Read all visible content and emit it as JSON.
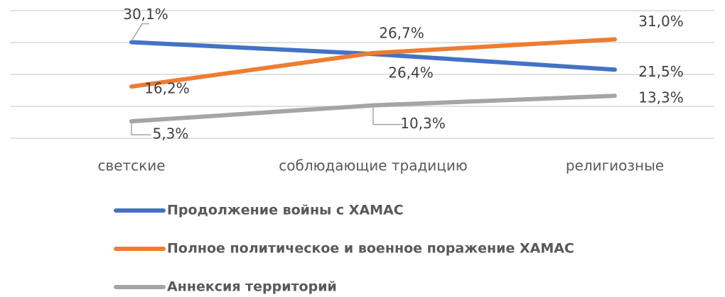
{
  "chart_data": {
    "type": "line",
    "categories": [
      "светские",
      "соблюдающие традицию",
      "религиозные"
    ],
    "series": [
      {
        "name": "Продолжение войны с ХАМАС",
        "color": "#4472c4",
        "values": [
          30.1,
          26.4,
          21.5
        ],
        "value_labels": [
          "30,1%",
          "26,4%",
          "21,5%"
        ]
      },
      {
        "name": "Полное политическое и военное поражение ХАМАС",
        "color": "#ed7d31",
        "values": [
          16.2,
          26.7,
          31.0
        ],
        "value_labels": [
          "16,2%",
          "26,7%",
          "31,0%"
        ]
      },
      {
        "name": "Аннексия территорий",
        "color": "#a5a5a5",
        "values": [
          5.3,
          10.3,
          13.3
        ],
        "value_labels": [
          "5,3%",
          "10,3%",
          "13,3%"
        ]
      }
    ],
    "ylim": [
      0,
      40
    ],
    "yticks": [
      0,
      10,
      20,
      30,
      40
    ],
    "grid": true,
    "legend": "bottom"
  }
}
